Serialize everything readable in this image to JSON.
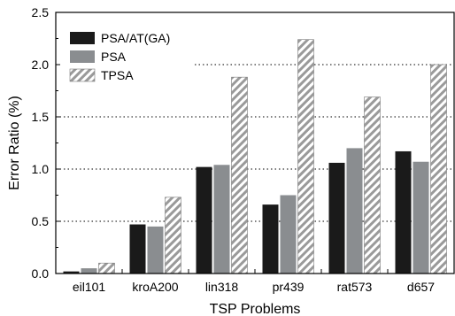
{
  "chart_data": {
    "type": "bar",
    "xlabel": "TSP Problems",
    "ylabel": "Error Ratio (%)",
    "ylim": [
      0,
      2.5
    ],
    "yticks": [
      "0.0",
      "0.5",
      "1.0",
      "1.5",
      "2.0",
      "2.5"
    ],
    "categories": [
      "eil101",
      "kroA200",
      "lin318",
      "pr439",
      "rat573",
      "d657"
    ],
    "series": [
      {
        "name": "PSA/AT(GA)",
        "color": "#1a1a1a",
        "pattern": "solid",
        "values": [
          0.02,
          0.47,
          1.02,
          0.66,
          1.06,
          1.17
        ]
      },
      {
        "name": "PSA",
        "color": "#8a8d90",
        "pattern": "solid",
        "values": [
          0.05,
          0.45,
          1.04,
          0.75,
          1.2,
          1.07
        ]
      },
      {
        "name": "TPSA",
        "color": "#b0b0b0",
        "pattern": "hatch",
        "values": [
          0.1,
          0.73,
          1.88,
          2.24,
          1.69,
          2.0
        ]
      }
    ],
    "grid": "horizontal-dotted",
    "legend_position": "top-left"
  }
}
